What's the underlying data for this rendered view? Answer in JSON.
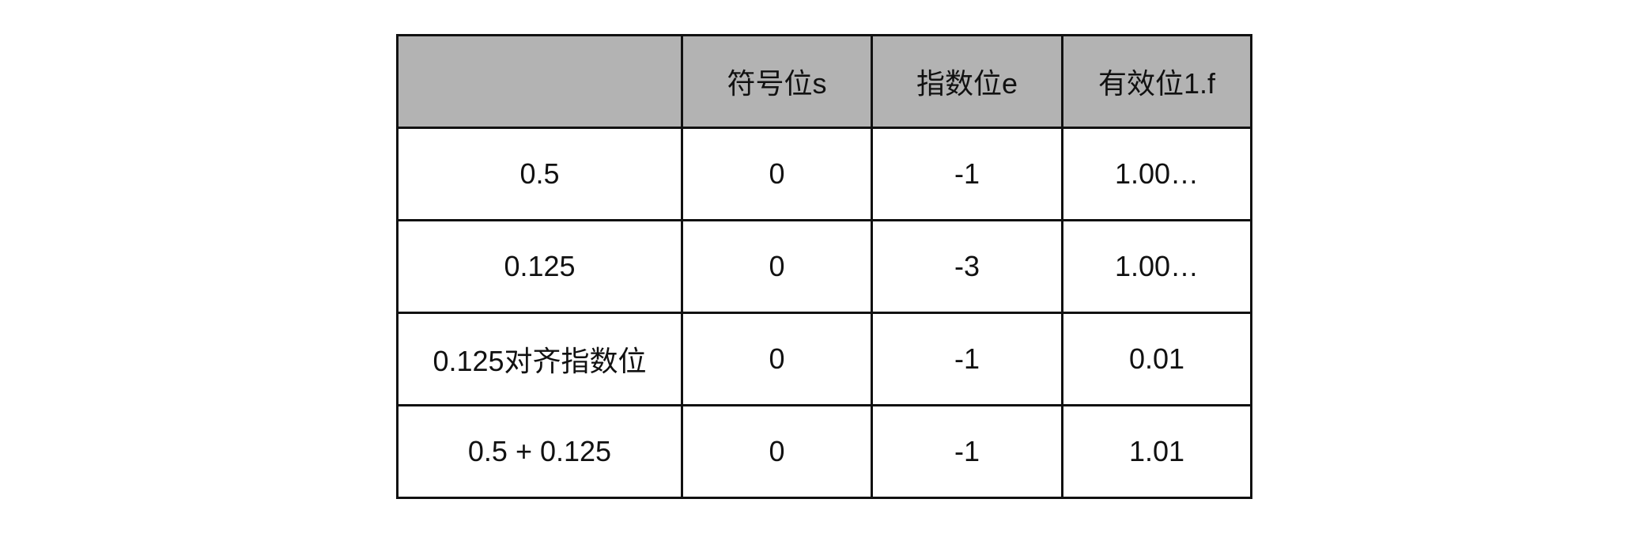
{
  "table": {
    "headers": [
      "",
      "符号位s",
      "指数位e",
      "有效位1.f"
    ],
    "rows": [
      [
        "0.5",
        "0",
        "-1",
        "1.00…"
      ],
      [
        "0.125",
        "0",
        "-3",
        "1.00…"
      ],
      [
        "0.125对齐指数位",
        "0",
        "-1",
        "0.01"
      ],
      [
        "0.5 + 0.125",
        "0",
        "-1",
        "1.01"
      ]
    ]
  },
  "colors": {
    "header_bg": "#b3b3b3",
    "border": "#111111"
  }
}
